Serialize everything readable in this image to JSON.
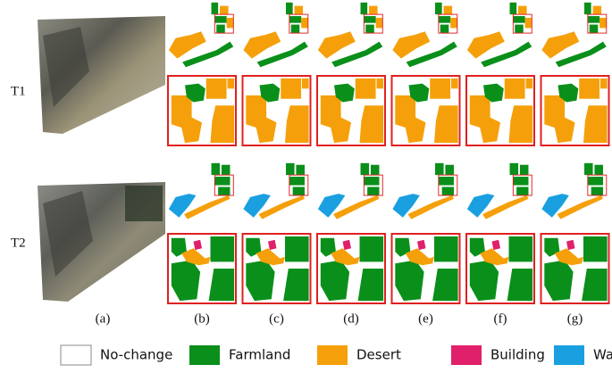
{
  "rows": [
    {
      "label": "T1"
    },
    {
      "label": "T2"
    }
  ],
  "columns": [
    "(a)",
    "(b)",
    "(c)",
    "(d)",
    "(e)",
    "(f)",
    "(g)"
  ],
  "legend": [
    {
      "label": "No-change"
    },
    {
      "label": "Farmland"
    },
    {
      "label": "Desert"
    },
    {
      "label": "Building"
    },
    {
      "label": "Water"
    }
  ]
}
